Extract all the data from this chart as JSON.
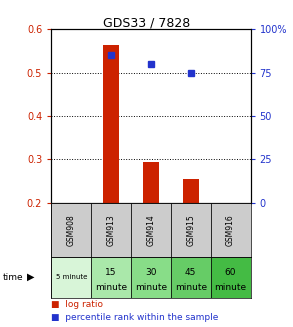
{
  "title": "GDS33 / 7828",
  "samples": [
    "GSM908",
    "GSM913",
    "GSM914",
    "GSM915",
    "GSM916"
  ],
  "time_labels_line1": [
    "5 minute",
    "15",
    "30",
    "45",
    "60"
  ],
  "time_labels_line2": [
    "",
    "minute",
    "minute",
    "minute",
    "minute"
  ],
  "time_small_font": [
    true,
    false,
    false,
    false,
    false
  ],
  "log_ratio": [
    null,
    0.565,
    0.295,
    0.255,
    null
  ],
  "percentile_rank": [
    null,
    85,
    80,
    75,
    null
  ],
  "ylim_left": [
    0.2,
    0.6
  ],
  "ylim_right": [
    0,
    100
  ],
  "yticks_left": [
    0.2,
    0.3,
    0.4,
    0.5,
    0.6
  ],
  "yticks_right": [
    0,
    25,
    50,
    75,
    100
  ],
  "ytick_labels_left": [
    "0.2",
    "0.3",
    "0.4",
    "0.5",
    "0.6"
  ],
  "ytick_labels_right": [
    "0",
    "25",
    "50",
    "75",
    "100%"
  ],
  "bar_color": "#cc2200",
  "dot_color": "#2233cc",
  "sample_bg_color": "#cccccc",
  "time_bg_colors": [
    "#d8f5d8",
    "#aae8aa",
    "#88dd88",
    "#66cc66",
    "#44bb44"
  ],
  "legend_bar_label": "log ratio",
  "legend_dot_label": "percentile rank within the sample",
  "left_axis_color": "#cc2200",
  "right_axis_color": "#2233cc",
  "bar_width": 0.4
}
